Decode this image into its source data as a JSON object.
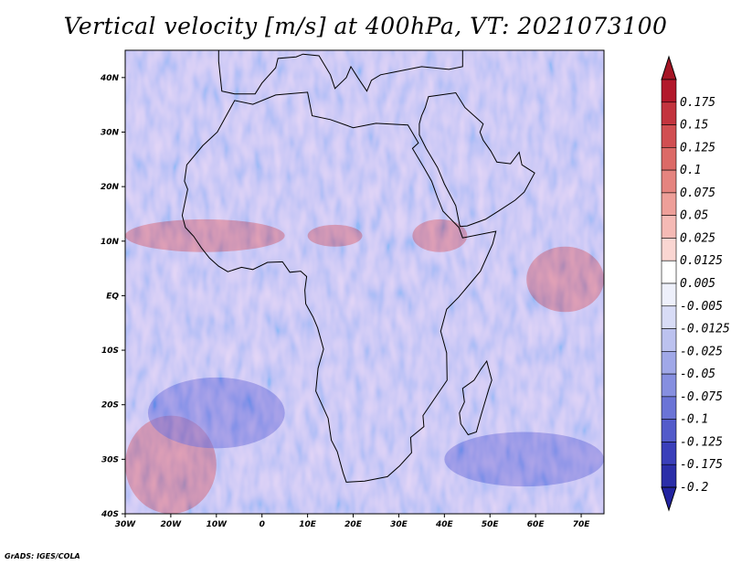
{
  "title": "Vertical velocity [m/s] at 400hPa, VT: 2021073100",
  "credit": "GrADS: IGES/COLA",
  "map": {
    "lon_range": [
      -30,
      75
    ],
    "lat_range": [
      -40,
      45
    ],
    "lon_ticks": [
      {
        "value": -30,
        "label": "30W"
      },
      {
        "value": -20,
        "label": "20W"
      },
      {
        "value": -10,
        "label": "10W"
      },
      {
        "value": 0,
        "label": "0"
      },
      {
        "value": 10,
        "label": "10E"
      },
      {
        "value": 20,
        "label": "20E"
      },
      {
        "value": 30,
        "label": "30E"
      },
      {
        "value": 40,
        "label": "40E"
      },
      {
        "value": 50,
        "label": "50E"
      },
      {
        "value": 60,
        "label": "60E"
      },
      {
        "value": 70,
        "label": "70E"
      }
    ],
    "lat_ticks": [
      {
        "value": 40,
        "label": "40N"
      },
      {
        "value": 30,
        "label": "30N"
      },
      {
        "value": 20,
        "label": "20N"
      },
      {
        "value": 10,
        "label": "10N"
      },
      {
        "value": 0,
        "label": "EQ"
      },
      {
        "value": -10,
        "label": "10S"
      },
      {
        "value": -20,
        "label": "20S"
      },
      {
        "value": -30,
        "label": "30S"
      },
      {
        "value": -40,
        "label": "40S"
      }
    ],
    "field_hotspots": [
      {
        "name": "west-africa-band",
        "lon": [
          -30,
          5
        ],
        "lat": [
          8,
          14
        ],
        "sign": 1
      },
      {
        "name": "sahel-east",
        "lon": [
          10,
          22
        ],
        "lat": [
          9,
          13
        ],
        "sign": 1
      },
      {
        "name": "ethiopia",
        "lon": [
          33,
          45
        ],
        "lat": [
          8,
          14
        ],
        "sign": 1
      },
      {
        "name": "indian-ocean-patch",
        "lon": [
          58,
          75
        ],
        "lat": [
          -3,
          9
        ],
        "sign": 1
      },
      {
        "name": "south-atlantic-streak",
        "lon": [
          -30,
          -10
        ],
        "lat": [
          -40,
          -22
        ],
        "sign": 1
      },
      {
        "name": "southern-indian-descent",
        "lon": [
          40,
          75
        ],
        "lat": [
          -35,
          -25
        ],
        "sign": -1
      },
      {
        "name": "south-atlantic-descent",
        "lon": [
          -25,
          5
        ],
        "lat": [
          -28,
          -15
        ],
        "sign": -1
      }
    ]
  },
  "colorbar": {
    "levels": [
      {
        "label": "0.175",
        "color": "#b2182b"
      },
      {
        "label": "0.15",
        "color": "#c3343e"
      },
      {
        "label": "0.125",
        "color": "#d14f52"
      },
      {
        "label": "0.1",
        "color": "#dc6a67"
      },
      {
        "label": "0.075",
        "color": "#e5847f"
      },
      {
        "label": "0.05",
        "color": "#ee9f99"
      },
      {
        "label": "0.025",
        "color": "#f5bab5"
      },
      {
        "label": "0.0125",
        "color": "#fad6d2"
      },
      {
        "label": "0.005",
        "color": "#ffffff"
      },
      {
        "label": "-0.005",
        "color": "#eef0fb"
      },
      {
        "label": "-0.0125",
        "color": "#d8dcf6"
      },
      {
        "label": "-0.025",
        "color": "#bcc2ef"
      },
      {
        "label": "-0.05",
        "color": "#a0a8e8"
      },
      {
        "label": "-0.075",
        "color": "#868fe0"
      },
      {
        "label": "-0.1",
        "color": "#6b74d6"
      },
      {
        "label": "-0.125",
        "color": "#535bca"
      },
      {
        "label": "-0.175",
        "color": "#3a3fba"
      },
      {
        "label": "-0.2",
        "color": "#2b2ea8"
      }
    ],
    "top_color": "#a51525",
    "bottom_color": "#2223a0"
  }
}
